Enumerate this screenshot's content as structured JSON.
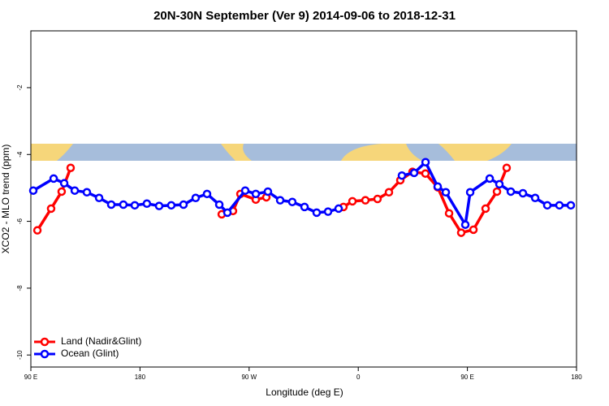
{
  "chart_data": {
    "type": "line",
    "title": "20N-30N September (Ver 9)   2014-09-06 to 2018-12-31",
    "x_label": "Longitude (deg E)",
    "y_label": "XCO2 - MLO trend (ppm)",
    "xlim": [
      90,
      540
    ],
    "ylim": [
      -10.36,
      -0.3
    ],
    "xticks": [
      {
        "value": 90,
        "label": "90 E"
      },
      180,
      {
        "value": 270,
        "label": "90 W"
      },
      {
        "value": 360,
        "label": "0"
      },
      {
        "value": 450,
        "label": "90 E"
      },
      {
        "value": 540,
        "label": "180"
      }
    ],
    "yticks": [
      -10,
      -8,
      -6,
      -4,
      -2
    ],
    "legend": "bottom-left",
    "series": [
      {
        "name": "Land (Nadir&Glint)",
        "color": "#ff0000",
        "x": [
          95.4,
          106.7,
          115.4,
          122.8,
          null,
          247.4,
          256.7,
          262.8,
          275.5,
          284.2,
          null,
          347.8,
          355.2,
          365.9,
          375.9,
          385.3,
          394.7,
          404.7,
          415.4,
          425.5,
          434.9,
          444.9,
          455.0,
          465.0,
          474.4,
          482.4
        ],
        "values": [
          -6.27,
          -5.62,
          -5.11,
          -4.4,
          null,
          -5.79,
          -5.69,
          -5.18,
          -5.35,
          -5.28,
          null,
          -5.57,
          -5.4,
          -5.37,
          -5.33,
          -5.13,
          -4.77,
          -4.52,
          -4.57,
          -4.98,
          -5.76,
          -6.34,
          -6.25,
          -5.62,
          -5.11,
          -4.4
        ]
      },
      {
        "name": "Ocean (Glint)",
        "color": "#0000ff",
        "x": [
          92.0,
          108.8,
          117.5,
          126.2,
          136.2,
          146.3,
          156.3,
          166.3,
          175.7,
          185.7,
          195.8,
          205.8,
          215.9,
          225.9,
          235.3,
          245.4,
          252.1,
          266.8,
          275.5,
          285.5,
          295.6,
          305.6,
          315.7,
          325.7,
          335.1,
          343.8,
          null,
          396.0,
          406.1,
          415.5,
          425.5,
          432.2,
          448.3,
          452.3,
          468.4,
          476.4,
          485.8,
          495.8,
          505.9,
          515.9,
          525.9,
          535.3
        ],
        "values": [
          -5.08,
          -4.72,
          -4.86,
          -5.08,
          -5.13,
          -5.3,
          -5.5,
          -5.5,
          -5.52,
          -5.47,
          -5.54,
          -5.52,
          -5.5,
          -5.3,
          -5.18,
          -5.5,
          -5.74,
          -5.08,
          -5.18,
          -5.11,
          -5.37,
          -5.42,
          -5.57,
          -5.74,
          -5.71,
          -5.62,
          null,
          -4.63,
          -4.55,
          -4.23,
          -4.96,
          -5.13,
          -6.1,
          -5.13,
          -4.72,
          -4.89,
          -5.11,
          -5.16,
          -5.3,
          -5.52,
          -5.52,
          -5.52
        ]
      }
    ]
  }
}
